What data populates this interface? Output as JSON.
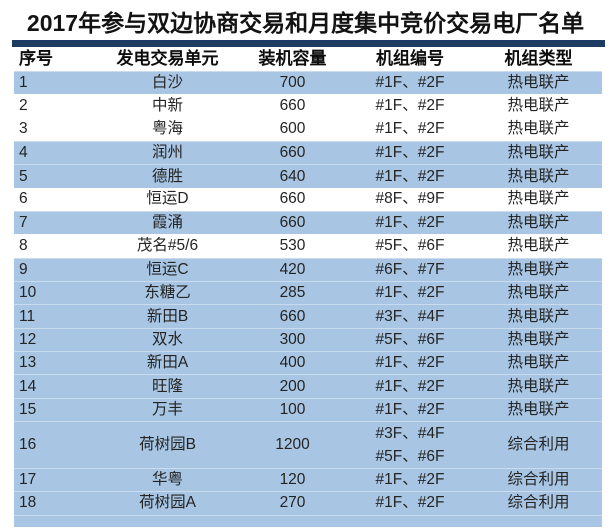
{
  "page": {
    "title": "2017年参与双边协商交易和月度集中竞价交易电厂名单"
  },
  "colors": {
    "accent_bar": "#1d3c62",
    "row_highlight": "#a8c6e3",
    "row_plain": "#ffffff",
    "title_text": "#121212",
    "body_text": "#242424"
  },
  "chart_data": {
    "type": "table",
    "title": "2017年参与双边协商交易和月度集中竞价交易电厂名单",
    "columns": [
      "序号",
      "发电交易单元",
      "装机容量",
      "机组编号",
      "机组类型"
    ],
    "rows": [
      {
        "no": "1",
        "unit": "白沙",
        "capacity": "700",
        "unit_no": "#1F、#2F",
        "type": "热电联产",
        "highlight": true
      },
      {
        "no": "2",
        "unit": "中新",
        "capacity": "660",
        "unit_no": "#1F、#2F",
        "type": "热电联产",
        "highlight": false
      },
      {
        "no": "3",
        "unit": "粤海",
        "capacity": "600",
        "unit_no": "#1F、#2F",
        "type": "热电联产",
        "highlight": false
      },
      {
        "no": "4",
        "unit": "润州",
        "capacity": "660",
        "unit_no": "#1F、#2F",
        "type": "热电联产",
        "highlight": true
      },
      {
        "no": "5",
        "unit": "德胜",
        "capacity": "640",
        "unit_no": "#1F、#2F",
        "type": "热电联产",
        "highlight": true
      },
      {
        "no": "6",
        "unit": "恒运D",
        "capacity": "660",
        "unit_no": "#8F、#9F",
        "type": "热电联产",
        "highlight": false
      },
      {
        "no": "7",
        "unit": "霞涌",
        "capacity": "660",
        "unit_no": "#1F、#2F",
        "type": "热电联产",
        "highlight": true
      },
      {
        "no": "8",
        "unit": "茂名#5/6",
        "capacity": "530",
        "unit_no": "#5F、#6F",
        "type": "热电联产",
        "highlight": false
      },
      {
        "no": "9",
        "unit": "恒运C",
        "capacity": "420",
        "unit_no": "#6F、#7F",
        "type": "热电联产",
        "highlight": true
      },
      {
        "no": "10",
        "unit": "东糖乙",
        "capacity": "285",
        "unit_no": "#1F、#2F",
        "type": "热电联产",
        "highlight": true
      },
      {
        "no": "11",
        "unit": "新田B",
        "capacity": "660",
        "unit_no": "#3F、#4F",
        "type": "热电联产",
        "highlight": true
      },
      {
        "no": "12",
        "unit": "双水",
        "capacity": "300",
        "unit_no": "#5F、#6F",
        "type": "热电联产",
        "highlight": true
      },
      {
        "no": "13",
        "unit": "新田A",
        "capacity": "400",
        "unit_no": "#1F、#2F",
        "type": "热电联产",
        "highlight": true
      },
      {
        "no": "14",
        "unit": "旺隆",
        "capacity": "200",
        "unit_no": "#1F、#2F",
        "type": "热电联产",
        "highlight": true
      },
      {
        "no": "15",
        "unit": "万丰",
        "capacity": "100",
        "unit_no": "#1F、#2F",
        "type": "热电联产",
        "highlight": true
      },
      {
        "no": "16",
        "unit": "荷树园B",
        "capacity": "1200",
        "unit_no": "#3F、#4F",
        "unit_no2": "#5F、#6F",
        "type": "综合利用",
        "highlight": true
      },
      {
        "no": "17",
        "unit": "华粤",
        "capacity": "120",
        "unit_no": "#1F、#2F",
        "type": "综合利用",
        "highlight": true
      },
      {
        "no": "18",
        "unit": "荷树园A",
        "capacity": "270",
        "unit_no": "#1F、#2F",
        "type": "综合利用",
        "highlight": true
      }
    ]
  }
}
